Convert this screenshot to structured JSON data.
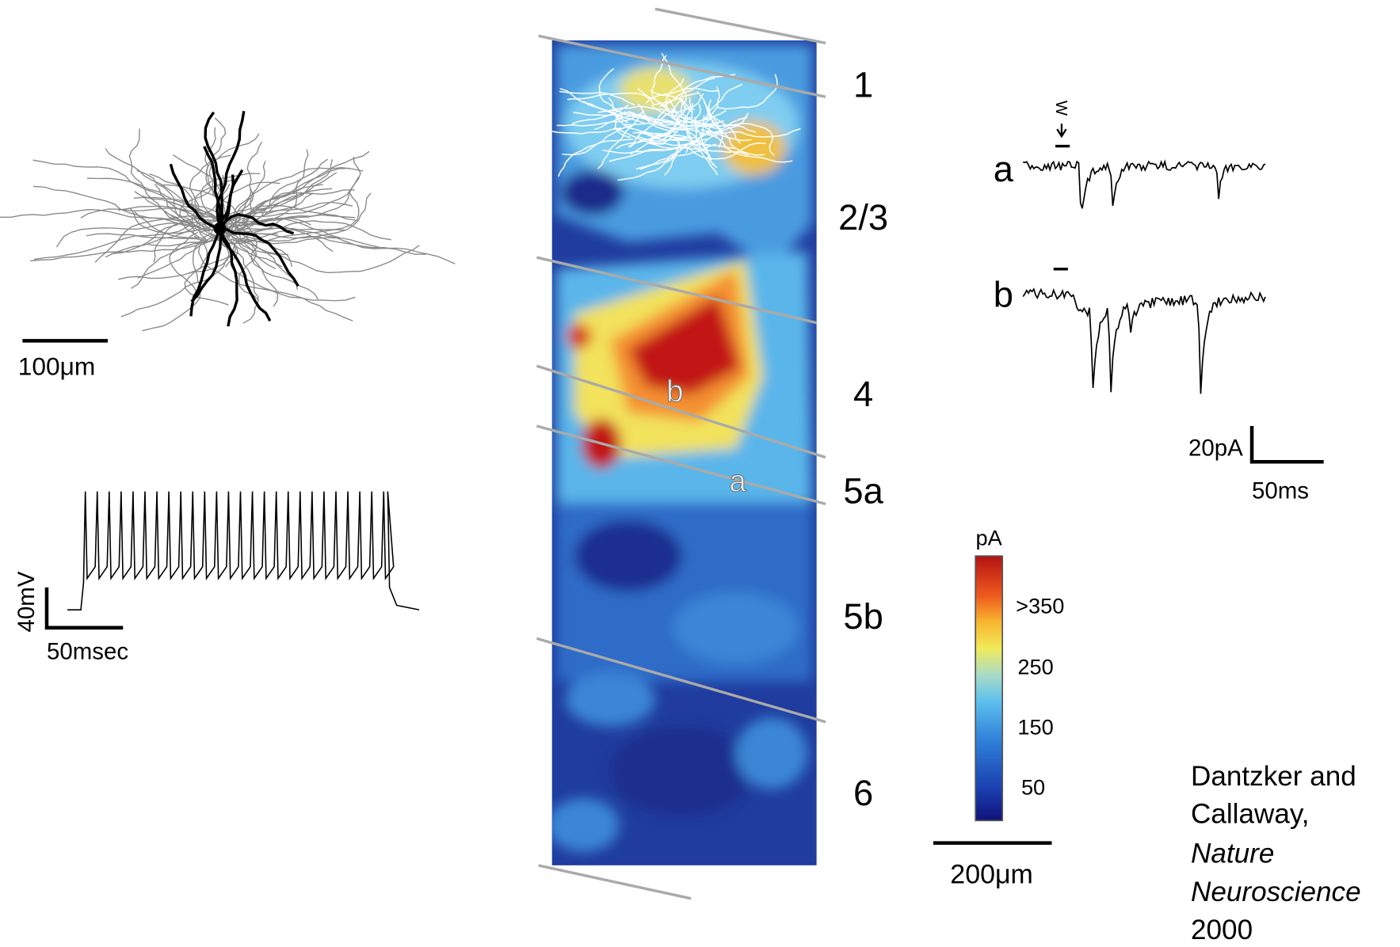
{
  "layers": [
    "1",
    "2/3",
    "4",
    "5a",
    "5b",
    "6"
  ],
  "heatmap": {
    "site_labels": [
      "b",
      "a"
    ]
  },
  "neuron": {
    "scale_label": "100μm"
  },
  "firing": {
    "voltage_scale": "40mV",
    "time_scale": "50msec"
  },
  "traces": {
    "labels": [
      "a",
      "b"
    ],
    "stimulus": "W",
    "current_scale": "20pA",
    "time_scale": "50ms"
  },
  "colorbar": {
    "unit": "pA",
    "labels": [
      ">350",
      "250",
      "150",
      "50"
    ],
    "scale_label": "200μm"
  },
  "citation": {
    "lines": [
      "Dantzker and",
      "Callaway,",
      "Nature",
      "Neuroscience",
      "2000"
    ]
  }
}
